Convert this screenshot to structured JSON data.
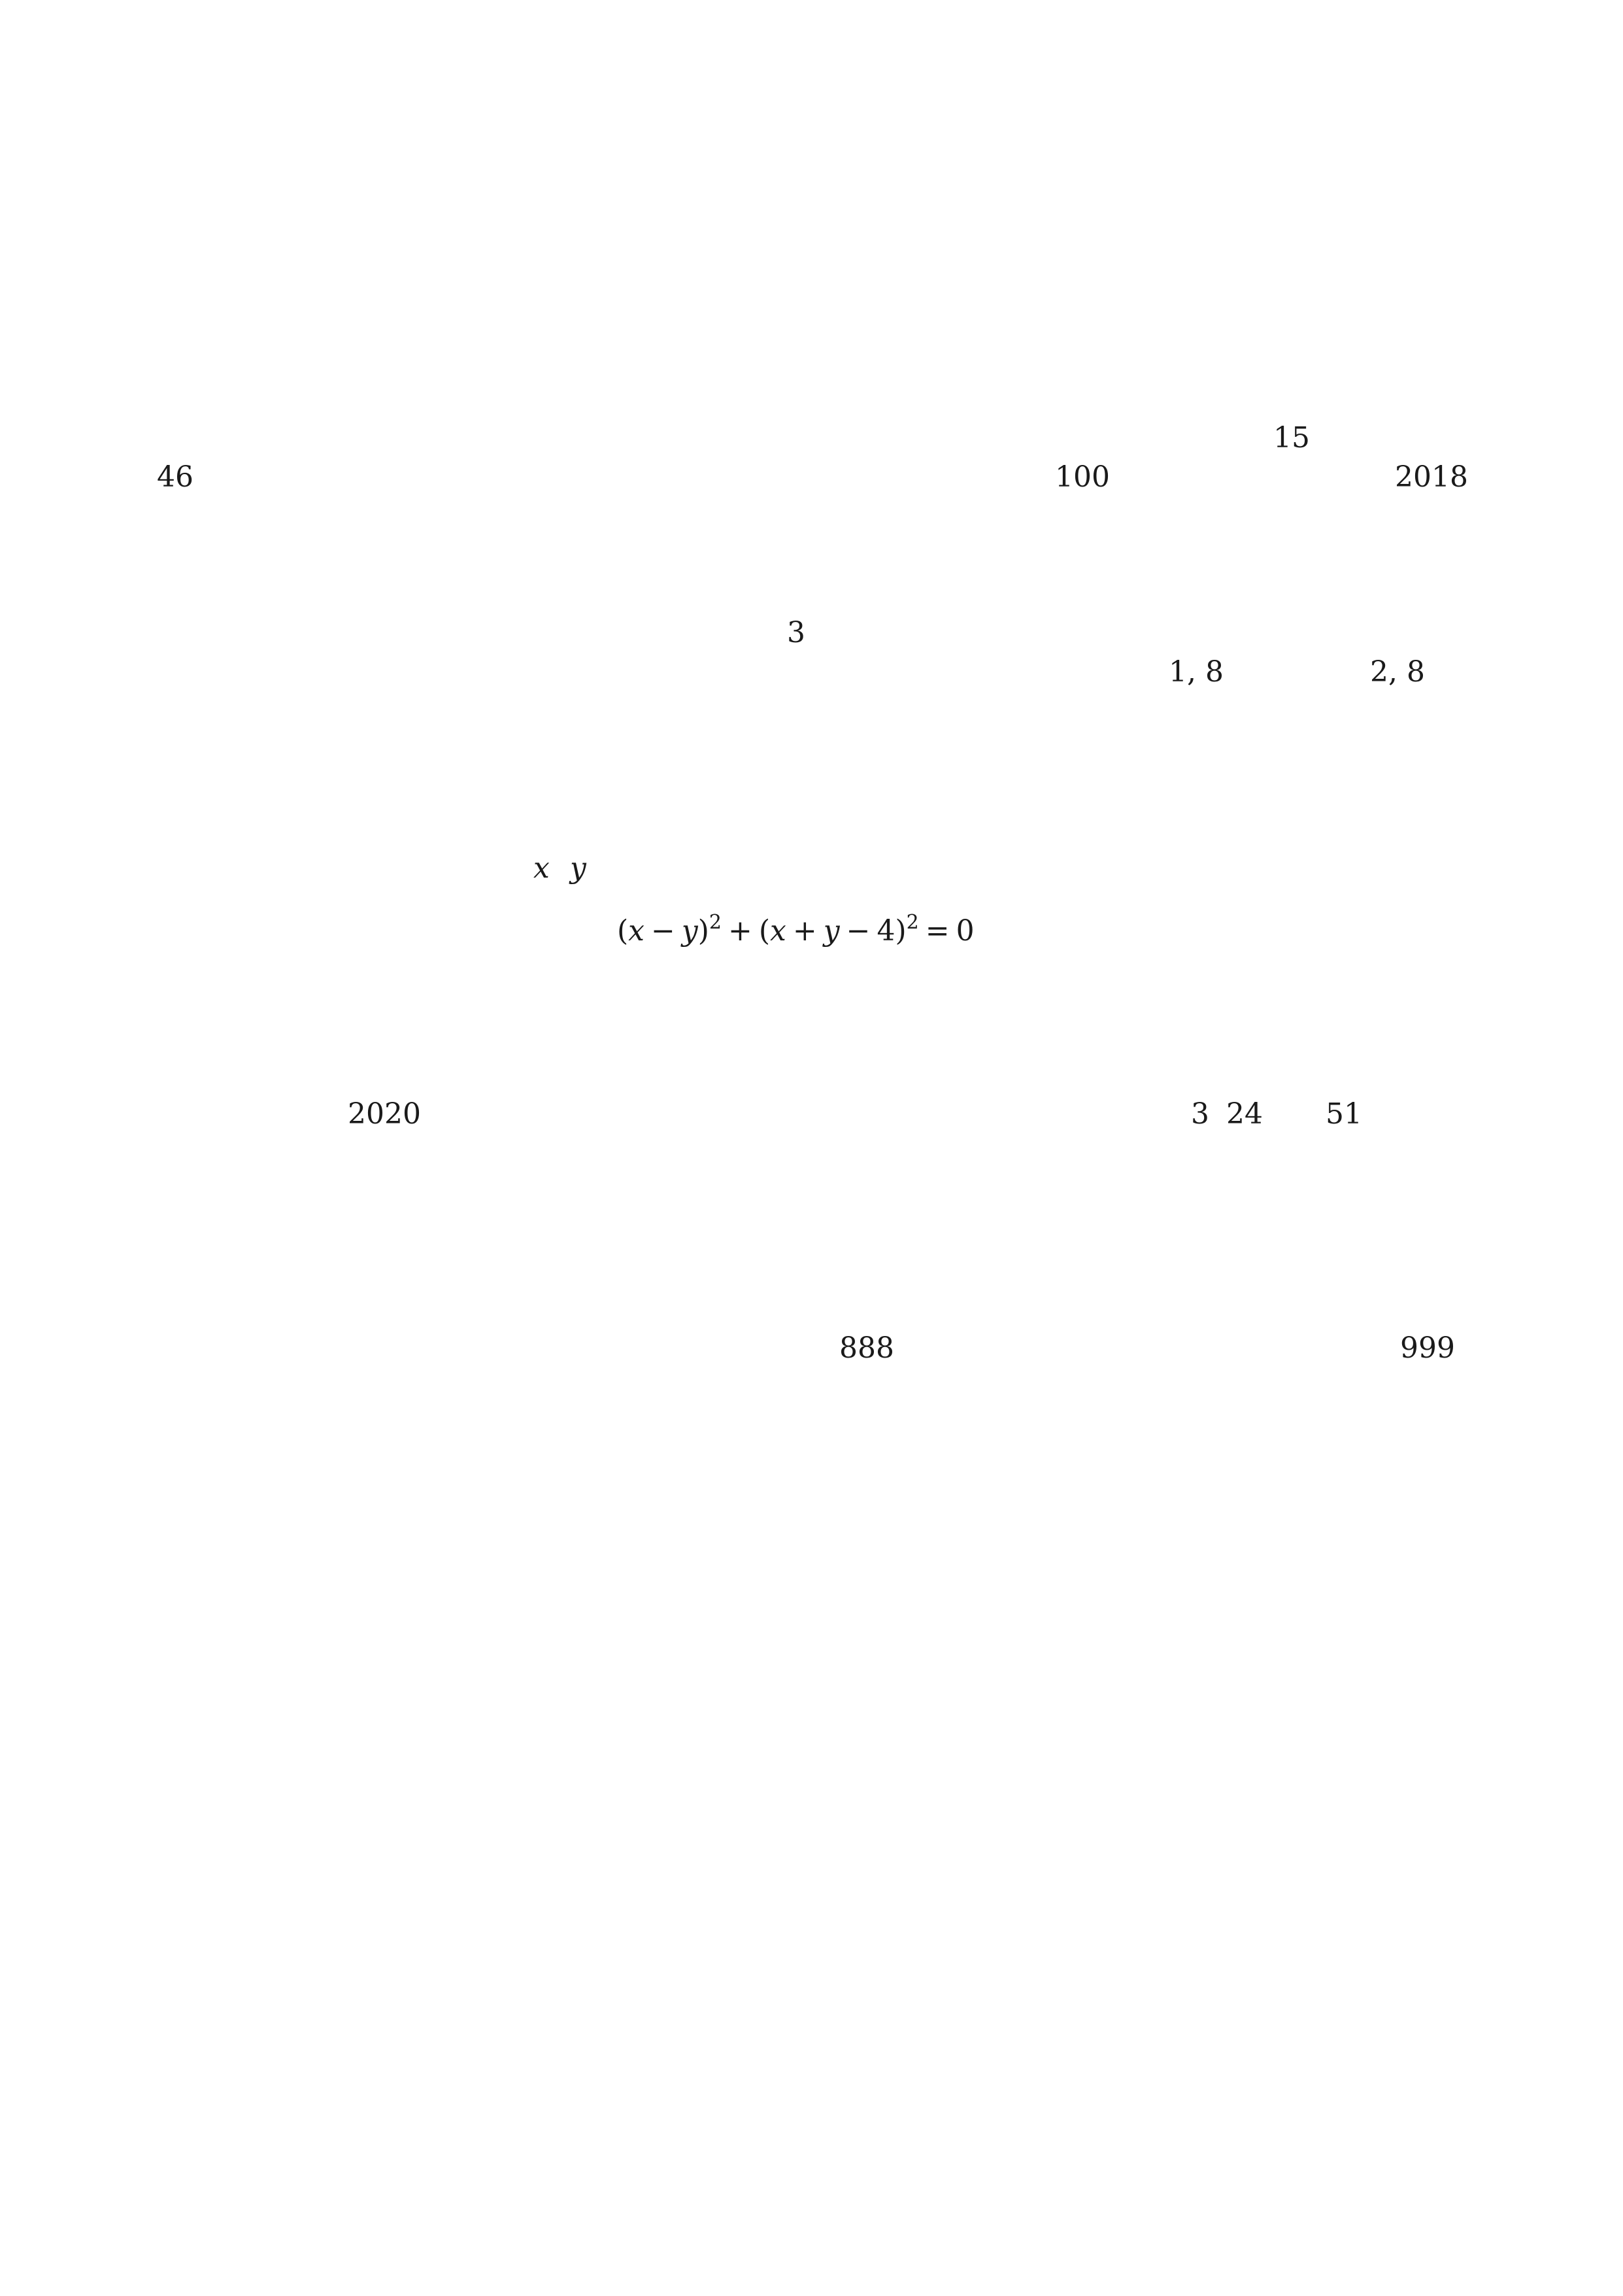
{
  "problems": {
    "p1": {
      "a": "15",
      "b": "46",
      "c": "100",
      "d": "2018"
    },
    "p2": {
      "a": "3",
      "b": "1, 8",
      "c": "2, 8"
    },
    "p3": {
      "var_x": "x",
      "var_y": "y",
      "equation": {
        "open1": "(",
        "x1": "x",
        "minus1": "−",
        "y1": "y",
        "close1": ")",
        "exp1": "2",
        "plus1": "+",
        "open2": "(",
        "x2": "x",
        "plus2": "+",
        "y2": "y",
        "minus2": "−",
        "four": "4",
        "close2": ")",
        "exp2": "2",
        "eq": "=",
        "zero": "0"
      }
    },
    "p4": {
      "year": "2020",
      "a": "3",
      "b": "24",
      "c": "51"
    },
    "p5": {
      "a": "888",
      "b": "999"
    }
  }
}
